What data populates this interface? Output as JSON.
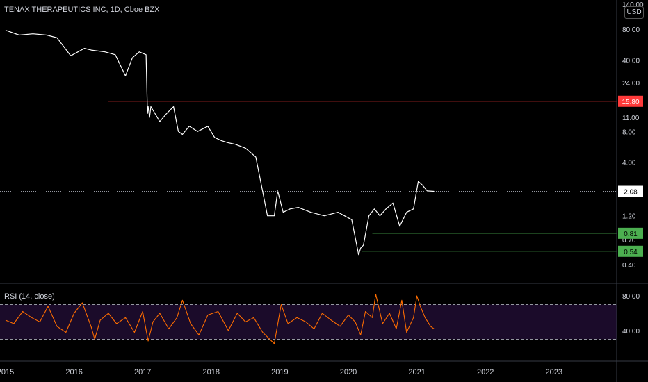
{
  "chart_data": [
    {
      "type": "line",
      "title": "TENAX THERAPEUTICS INC, 1D, Cboe BZX",
      "currency": "USD",
      "scale": "log",
      "y_ticks": [
        "140.00",
        "80.00",
        "40.00",
        "24.00",
        "11.00",
        "8.00",
        "4.00",
        "1.20",
        "0.70",
        "0.40"
      ],
      "y_tick_values": [
        140,
        80,
        40,
        24,
        11,
        8,
        4,
        1.2,
        0.7,
        0.4
      ],
      "x_ticks": [
        "2015",
        "2016",
        "2017",
        "2018",
        "2019",
        "2020",
        "2021",
        "2022",
        "2023"
      ],
      "x_tick_values": [
        2015.0,
        2016.0,
        2017.0,
        2018.0,
        2019.0,
        2020.0,
        2021.0,
        2022.0,
        2023.0
      ],
      "series": [
        {
          "color": "#ffffff",
          "x": [
            2015.0,
            2015.2,
            2015.4,
            2015.6,
            2015.75,
            2015.95,
            2016.15,
            2016.25,
            2016.45,
            2016.6,
            2016.75,
            2016.85,
            2016.95,
            2017.05,
            2017.07,
            2017.08,
            2017.1,
            2017.12,
            2017.25,
            2017.35,
            2017.45,
            2017.52,
            2017.58,
            2017.68,
            2017.8,
            2017.95,
            2018.05,
            2018.15,
            2018.25,
            2018.35,
            2018.5,
            2018.65,
            2018.82,
            2018.92,
            2018.97,
            2019.05,
            2019.15,
            2019.27,
            2019.45,
            2019.65,
            2019.85,
            2020.05,
            2020.15,
            2020.18,
            2020.22,
            2020.3,
            2020.38,
            2020.46,
            2020.55,
            2020.65,
            2020.75,
            2020.85,
            2020.95,
            2021.02,
            2021.08,
            2021.15,
            2021.25
          ],
          "y": [
            78,
            70,
            72,
            70,
            66,
            44,
            52,
            50,
            48,
            45,
            28,
            42,
            48,
            45,
            12,
            14,
            11,
            14,
            10,
            12,
            14,
            8,
            7.5,
            9,
            8,
            9,
            7,
            6.5,
            6.2,
            6.0,
            5.5,
            4.5,
            1.2,
            1.2,
            2.1,
            1.3,
            1.4,
            1.45,
            1.3,
            1.2,
            1.3,
            1.1,
            0.5,
            0.58,
            0.62,
            1.2,
            1.4,
            1.2,
            1.4,
            1.6,
            0.95,
            1.3,
            1.4,
            2.6,
            2.4,
            2.1,
            2.08
          ]
        }
      ],
      "last_price": "2.08",
      "lines": [
        {
          "label": "15.80",
          "value": 15.8,
          "color": "#ff3a3a",
          "from_x": 2016.5
        },
        {
          "label": "0.81",
          "value": 0.81,
          "color": "#4caf50",
          "from_x": 2020.35
        },
        {
          "label": "0.54",
          "value": 0.54,
          "color": "#4caf50",
          "from_x": 2020.2
        }
      ]
    },
    {
      "type": "line",
      "title": "RSI (14, close)",
      "y_ticks": [
        "80.00",
        "40.00"
      ],
      "y_tick_values": [
        80,
        40
      ],
      "band": [
        30,
        70
      ],
      "series": [
        {
          "color": "#ff6d00",
          "x": [
            2015.0,
            2015.12,
            2015.25,
            2015.38,
            2015.5,
            2015.62,
            2015.75,
            2015.88,
            2016.0,
            2016.12,
            2016.25,
            2016.3,
            2016.38,
            2016.5,
            2016.62,
            2016.75,
            2016.88,
            2017.0,
            2017.08,
            2017.15,
            2017.25,
            2017.38,
            2017.5,
            2017.58,
            2017.7,
            2017.82,
            2017.95,
            2018.1,
            2018.25,
            2018.38,
            2018.5,
            2018.62,
            2018.75,
            2018.92,
            2019.02,
            2019.12,
            2019.25,
            2019.38,
            2019.5,
            2019.62,
            2019.75,
            2019.88,
            2020.0,
            2020.1,
            2020.18,
            2020.25,
            2020.35,
            2020.4,
            2020.5,
            2020.6,
            2020.7,
            2020.78,
            2020.85,
            2020.95,
            2021.0,
            2021.05,
            2021.12,
            2021.2,
            2021.25
          ],
          "y": [
            52,
            48,
            62,
            55,
            50,
            68,
            45,
            38,
            60,
            72,
            44,
            30,
            52,
            60,
            48,
            55,
            38,
            62,
            28,
            50,
            60,
            42,
            55,
            75,
            48,
            35,
            58,
            62,
            40,
            60,
            50,
            55,
            38,
            25,
            70,
            48,
            55,
            50,
            42,
            60,
            52,
            45,
            58,
            50,
            35,
            62,
            55,
            82,
            48,
            60,
            42,
            75,
            38,
            55,
            80,
            68,
            55,
            45,
            42
          ]
        }
      ]
    }
  ]
}
